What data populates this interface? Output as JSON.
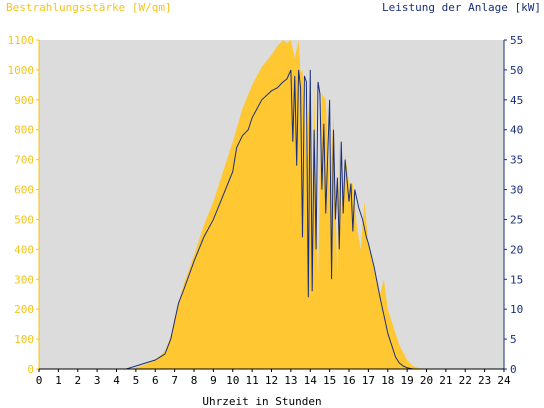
{
  "chart_data": {
    "type": "area",
    "ylabel_left": "Bestrahlungsstärke [W/qm]",
    "ylabel_right": "Leistung der Anlage [kW]",
    "xlabel": "Uhrzeit in Stunden",
    "xlim": [
      0,
      24
    ],
    "ylim_left": [
      0,
      1100
    ],
    "ylim_right": [
      0,
      55
    ],
    "x_ticks": [
      "0",
      "1",
      "2",
      "3",
      "4",
      "5",
      "6",
      "7",
      "8",
      "9",
      "10",
      "11",
      "12",
      "13",
      "14",
      "15",
      "16",
      "17",
      "18",
      "19",
      "20",
      "21",
      "22",
      "23",
      "24"
    ],
    "y_ticks_left": [
      "0",
      "100",
      "200",
      "300",
      "400",
      "500",
      "600",
      "700",
      "800",
      "900",
      "1000",
      "1100"
    ],
    "y_ticks_right": [
      "0",
      "5",
      "10",
      "15",
      "20",
      "25",
      "30",
      "35",
      "40",
      "45",
      "50",
      "55"
    ],
    "grid": false,
    "colors": {
      "plot_background": "#dcdcdc",
      "irradiance": "#ffc832",
      "power": "#1a2f7a",
      "left_axis": "#f5c518",
      "right_axis": "#1a2f7a"
    },
    "series": [
      {
        "name": "Bestrahlungsstärke [W/qm]",
        "axis": "left",
        "type": "area",
        "x": [
          5.0,
          5.5,
          6.0,
          6.5,
          6.8,
          7.0,
          7.2,
          7.5,
          8.0,
          8.5,
          9.0,
          9.5,
          10.0,
          10.5,
          11.0,
          11.5,
          12.0,
          12.3,
          12.6,
          12.8,
          13.0,
          13.2,
          13.4,
          13.5,
          13.6,
          13.8,
          14.0,
          14.1,
          14.2,
          14.4,
          14.6,
          14.8,
          15.0,
          15.2,
          15.4,
          15.5,
          15.6,
          15.8,
          16.0,
          16.2,
          16.4,
          16.6,
          16.8,
          17.0,
          17.3,
          17.6,
          17.8,
          18.0,
          18.3,
          18.6,
          19.0,
          19.3,
          19.6,
          20.0
        ],
        "y": [
          5,
          15,
          30,
          60,
          110,
          170,
          220,
          290,
          380,
          480,
          560,
          660,
          760,
          870,
          950,
          1010,
          1050,
          1080,
          1100,
          1090,
          1100,
          1040,
          1100,
          990,
          1000,
          700,
          990,
          500,
          950,
          300,
          920,
          900,
          600,
          850,
          300,
          780,
          520,
          720,
          620,
          620,
          480,
          400,
          560,
          420,
          330,
          250,
          300,
          200,
          140,
          80,
          30,
          10,
          3,
          0
        ]
      },
      {
        "name": "Leistung der Anlage [kW]",
        "axis": "right",
        "type": "line",
        "x": [
          0,
          4.5,
          5.0,
          5.5,
          6.0,
          6.5,
          6.8,
          7.0,
          7.2,
          7.5,
          8.0,
          8.5,
          9.0,
          9.5,
          10.0,
          10.2,
          10.5,
          10.8,
          11.0,
          11.5,
          12.0,
          12.3,
          12.6,
          12.8,
          13.0,
          13.1,
          13.2,
          13.3,
          13.4,
          13.5,
          13.6,
          13.7,
          13.8,
          13.9,
          14.0,
          14.1,
          14.2,
          14.3,
          14.4,
          14.5,
          14.6,
          14.7,
          14.8,
          15.0,
          15.1,
          15.2,
          15.3,
          15.4,
          15.5,
          15.6,
          15.7,
          15.8,
          16.0,
          16.1,
          16.2,
          16.3,
          16.5,
          16.7,
          16.9,
          17.0,
          17.3,
          17.6,
          17.8,
          18.0,
          18.2,
          18.4,
          18.6,
          18.8,
          19.0,
          19.3,
          19.6,
          20.0,
          24.0
        ],
        "y": [
          0,
          0,
          0.5,
          1,
          1.5,
          2.5,
          5,
          8,
          11,
          13.5,
          18,
          22,
          25,
          29,
          33,
          37,
          39,
          40,
          42,
          45,
          46.5,
          47,
          48,
          48.5,
          50,
          38,
          49,
          34,
          50,
          47,
          22,
          49,
          48,
          12,
          50,
          13,
          40,
          20,
          48,
          46,
          30,
          41,
          26,
          45,
          15,
          40,
          25,
          32,
          20,
          38,
          26,
          35,
          28,
          31,
          23,
          30,
          27,
          25,
          22,
          21,
          17,
          12,
          9,
          6,
          4,
          2,
          1,
          0.5,
          0.2,
          0,
          0,
          0,
          0
        ]
      }
    ]
  }
}
